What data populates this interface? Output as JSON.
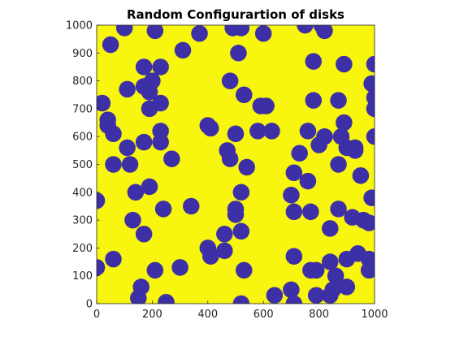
{
  "chart_data": {
    "type": "scatter",
    "title": "Random Configurartion of disks",
    "xlabel": "",
    "ylabel": "",
    "xlim": [
      0,
      1000
    ],
    "ylim": [
      0,
      1000
    ],
    "xticks": [
      "0",
      "200",
      "400",
      "600",
      "800",
      "1000"
    ],
    "yticks": [
      "0",
      "100",
      "200",
      "300",
      "400",
      "500",
      "600",
      "700",
      "800",
      "900",
      "1000"
    ],
    "grid": false,
    "legend": "none",
    "disk_radius": 30,
    "background_color": "#f8f50f",
    "disk_color": "#3d2fa6",
    "disks": [
      [
        20,
        720
      ],
      [
        40,
        640
      ],
      [
        50,
        930
      ],
      [
        40,
        660
      ],
      [
        60,
        610
      ],
      [
        60,
        500
      ],
      [
        60,
        160
      ],
      [
        100,
        990
      ],
      [
        110,
        770
      ],
      [
        110,
        560
      ],
      [
        120,
        500
      ],
      [
        130,
        300
      ],
      [
        140,
        400
      ],
      [
        150,
        20
      ],
      [
        160,
        60
      ],
      [
        170,
        850
      ],
      [
        170,
        780
      ],
      [
        170,
        580
      ],
      [
        170,
        250
      ],
      [
        190,
        760
      ],
      [
        190,
        700
      ],
      [
        190,
        420
      ],
      [
        200,
        800
      ],
      [
        210,
        980
      ],
      [
        210,
        120
      ],
      [
        230,
        720
      ],
      [
        230,
        620
      ],
      [
        230,
        850
      ],
      [
        230,
        580
      ],
      [
        240,
        340
      ],
      [
        250,
        0
      ],
      [
        250,
        5
      ],
      [
        270,
        520
      ],
      [
        300,
        130
      ],
      [
        310,
        910
      ],
      [
        340,
        350
      ],
      [
        370,
        970
      ],
      [
        400,
        640
      ],
      [
        400,
        200
      ],
      [
        410,
        170
      ],
      [
        410,
        630
      ],
      [
        460,
        250
      ],
      [
        460,
        190
      ],
      [
        470,
        550
      ],
      [
        480,
        520
      ],
      [
        480,
        800
      ],
      [
        490,
        990
      ],
      [
        500,
        340
      ],
      [
        500,
        320
      ],
      [
        500,
        610
      ],
      [
        510,
        900
      ],
      [
        520,
        400
      ],
      [
        520,
        260
      ],
      [
        520,
        990
      ],
      [
        520,
        0
      ],
      [
        530,
        750
      ],
      [
        530,
        120
      ],
      [
        540,
        490
      ],
      [
        580,
        620
      ],
      [
        590,
        710
      ],
      [
        600,
        970
      ],
      [
        610,
        710
      ],
      [
        630,
        620
      ],
      [
        640,
        30
      ],
      [
        700,
        390
      ],
      [
        700,
        50
      ],
      [
        710,
        470
      ],
      [
        710,
        330
      ],
      [
        710,
        170
      ],
      [
        710,
        0
      ],
      [
        730,
        540
      ],
      [
        750,
        1000
      ],
      [
        760,
        620
      ],
      [
        760,
        440
      ],
      [
        770,
        120
      ],
      [
        770,
        330
      ],
      [
        780,
        870
      ],
      [
        780,
        730
      ],
      [
        790,
        120
      ],
      [
        790,
        30
      ],
      [
        800,
        570
      ],
      [
        810,
        1000
      ],
      [
        820,
        980
      ],
      [
        820,
        600
      ],
      [
        840,
        270
      ],
      [
        840,
        150
      ],
      [
        840,
        30
      ],
      [
        850,
        50
      ],
      [
        860,
        100
      ],
      [
        870,
        340
      ],
      [
        870,
        500
      ],
      [
        870,
        730
      ],
      [
        880,
        600
      ],
      [
        890,
        650
      ],
      [
        890,
        860
      ],
      [
        900,
        560
      ],
      [
        900,
        160
      ],
      [
        900,
        60
      ],
      [
        920,
        310
      ],
      [
        930,
        550
      ],
      [
        930,
        560
      ],
      [
        940,
        180
      ],
      [
        950,
        460
      ],
      [
        960,
        300
      ],
      [
        980,
        290
      ],
      [
        980,
        160
      ],
      [
        980,
        120
      ],
      [
        990,
        790
      ],
      [
        990,
        380
      ],
      [
        1000,
        740
      ],
      [
        1000,
        600
      ],
      [
        1000,
        700
      ],
      [
        1000,
        860
      ],
      [
        0,
        130
      ],
      [
        0,
        370
      ]
    ]
  }
}
